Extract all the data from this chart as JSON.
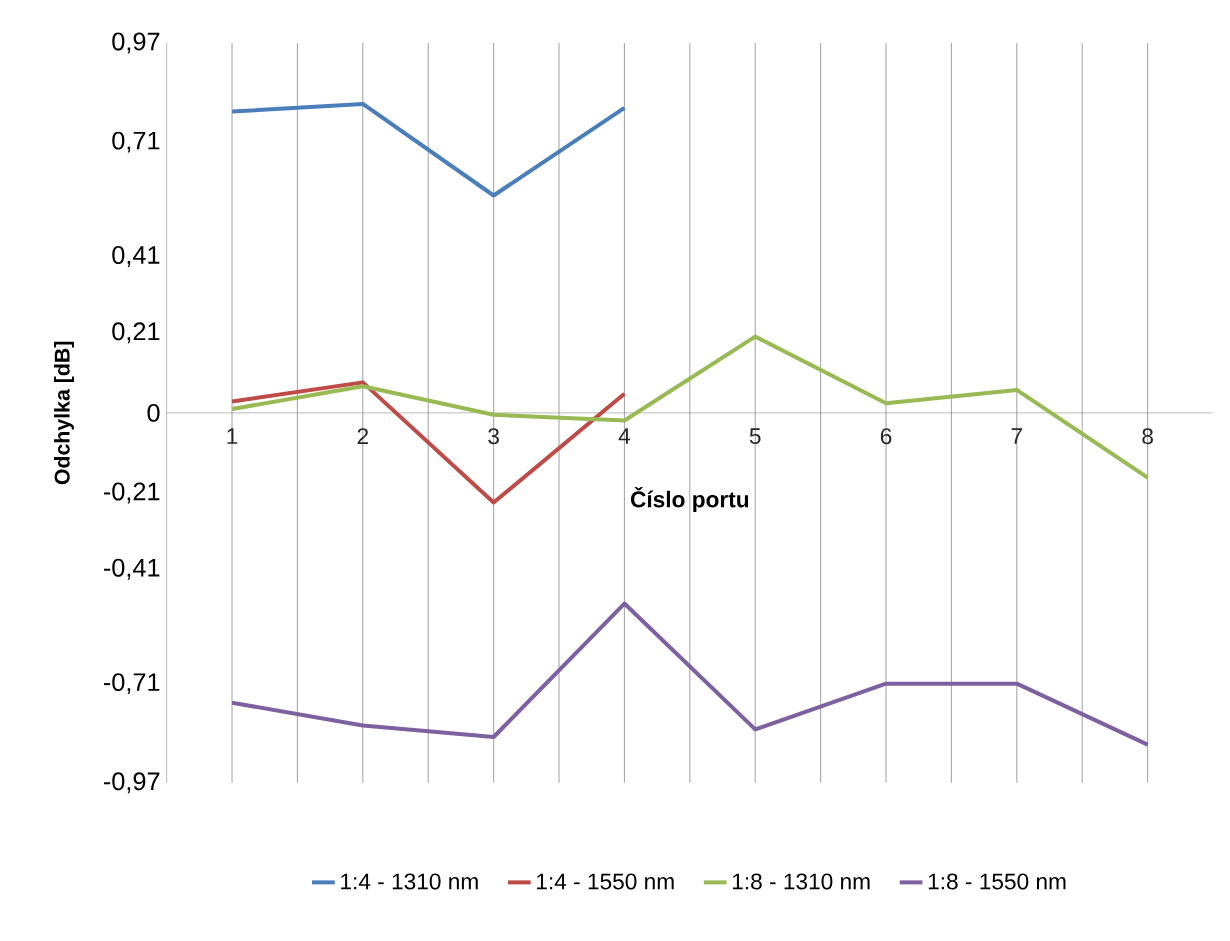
{
  "chart_data": {
    "type": "line",
    "xlabel": "Číslo portu",
    "ylabel": "Odchylka [dB]",
    "categories": [
      "1",
      "2",
      "3",
      "4",
      "5",
      "6",
      "7",
      "8"
    ],
    "series": [
      {
        "name": "1:4 - 1310 nm",
        "color": "#4a7ebb",
        "values": [
          0.79,
          0.81,
          0.57,
          0.8,
          null,
          null,
          null,
          null
        ]
      },
      {
        "name": "1:4 - 1550 nm",
        "color": "#be4b48",
        "values": [
          0.03,
          0.08,
          -0.235,
          0.05,
          null,
          null,
          null,
          null
        ]
      },
      {
        "name": "1:8 - 1310 nm",
        "color": "#98b954",
        "values": [
          0.01,
          0.07,
          -0.005,
          -0.02,
          0.2,
          0.025,
          0.06,
          -0.17
        ]
      },
      {
        "name": "1:8 - 1550 nm",
        "color": "#7d60a0",
        "values": [
          -0.76,
          -0.82,
          -0.85,
          -0.5,
          -0.83,
          -0.71,
          -0.71,
          -0.87
        ]
      }
    ],
    "ylim": [
      -0.97,
      0.97
    ],
    "yticks": [
      {
        "value": 0.97,
        "label": "0,97"
      },
      {
        "value": 0.71,
        "label": "0,71"
      },
      {
        "value": 0.41,
        "label": "0,41"
      },
      {
        "value": 0.21,
        "label": "0,21"
      },
      0,
      {
        "value": -0.21,
        "label": "-0,21"
      },
      {
        "value": -0.41,
        "label": "-0,41"
      },
      {
        "value": -0.71,
        "label": "-0,71"
      },
      {
        "value": -0.97,
        "label": "-0,97"
      }
    ],
    "grid": "x",
    "legend": "bottom",
    "marker": "none",
    "line_style": "solid"
  }
}
